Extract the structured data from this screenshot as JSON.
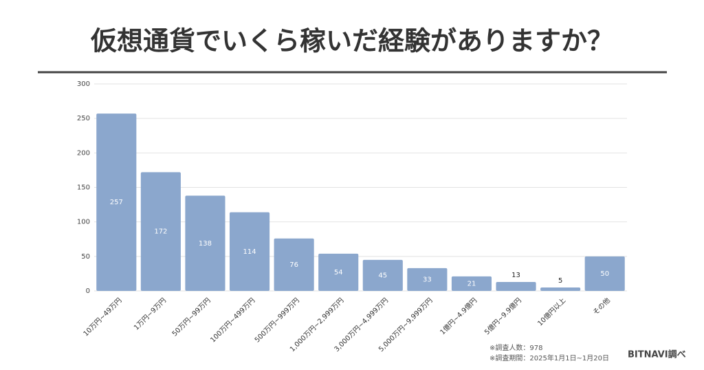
{
  "chart_data": {
    "type": "bar",
    "title": "仮想通貨でいくら稼いだ経験がありますか？",
    "categories": [
      "10万円~49万円",
      "1万円~9万円",
      "50万円~99万円",
      "100万円~499万円",
      "500万円~999万円",
      "1,000万円~2,999万円",
      "3,000万円~4,999万円",
      "5,000万円~9,999万円",
      "1億円~4.9億円",
      "5億円~9.9億円",
      "10億円以上",
      "その他"
    ],
    "values": [
      257,
      172,
      138,
      114,
      76,
      54,
      45,
      33,
      21,
      13,
      5,
      50
    ],
    "color": "#8ba7cd",
    "ylim": [
      0,
      300
    ],
    "yticks": [
      0,
      50,
      100,
      150,
      200,
      250,
      300
    ],
    "grid": true,
    "notes": [
      "※調査人数：978",
      "※調査期間：2025年1月1日~1月20日"
    ],
    "source": "BITNAVI調べ"
  }
}
